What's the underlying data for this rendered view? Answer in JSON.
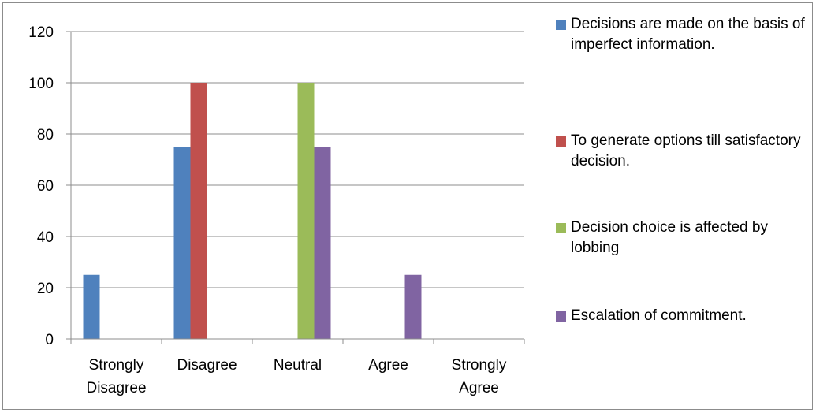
{
  "chart_data": {
    "type": "bar",
    "categories": [
      [
        "Strongly",
        "Disagree"
      ],
      [
        "Disagree"
      ],
      [
        "Neutral"
      ],
      [
        "Agree"
      ],
      [
        "Strongly",
        "Agree"
      ]
    ],
    "series": [
      {
        "name": "Decisions are made on the basis of imperfect information.",
        "color": "#4F81BD",
        "values": [
          25,
          75,
          0,
          0,
          0
        ]
      },
      {
        "name": "To generate options till satisfactory decision.",
        "color": "#C0504D",
        "values": [
          0,
          100,
          0,
          0,
          0
        ]
      },
      {
        "name": "Decision choice is affected by lobbing",
        "color": "#9BBB59",
        "values": [
          0,
          0,
          100,
          0,
          0
        ]
      },
      {
        "name": "Escalation of commitment.",
        "color": "#8064A2",
        "values": [
          0,
          0,
          75,
          25,
          0
        ]
      }
    ],
    "yticks": [
      "0",
      "20",
      "40",
      "60",
      "80",
      "100",
      "120"
    ],
    "ylim": [
      0,
      120
    ],
    "grid": true,
    "legend_position": "right"
  },
  "legend": {
    "items": [
      {
        "label": "Decisions are made on the basis of imperfect information.",
        "color": "#4F81BD"
      },
      {
        "label": "To generate options till satisfactory decision.",
        "color": "#C0504D"
      },
      {
        "label": "Decision choice is affected by lobbing",
        "color": "#9BBB59"
      },
      {
        "label": "Escalation of commitment.",
        "color": "#8064A2"
      }
    ]
  }
}
